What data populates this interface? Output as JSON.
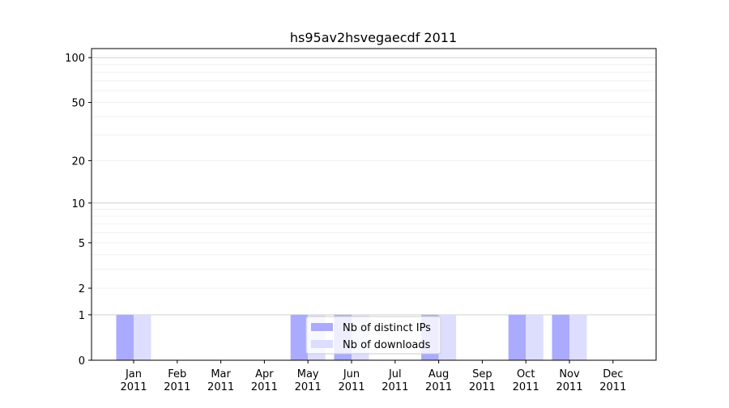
{
  "chart_data": {
    "type": "bar",
    "title": "hs95av2hsvegaecdf 2011",
    "xlabel": "",
    "ylabel": "",
    "yscale": "log(1+y)",
    "ylim": [
      0,
      115
    ],
    "yticks": [
      0,
      1,
      2,
      5,
      10,
      20,
      50,
      100
    ],
    "grid": true,
    "legend_placement": "bottom-center",
    "categories": [
      "Jan\n2011",
      "Feb\n2011",
      "Mar\n2011",
      "Apr\n2011",
      "May\n2011",
      "Jun\n2011",
      "Jul\n2011",
      "Aug\n2011",
      "Sep\n2011",
      "Oct\n2011",
      "Nov\n2011",
      "Dec\n2011"
    ],
    "series": [
      {
        "name": "Nb of distinct IPs",
        "color": "#aaaaff",
        "values": [
          1,
          0,
          0,
          0,
          1,
          1,
          0,
          1,
          0,
          1,
          1,
          0
        ]
      },
      {
        "name": "Nb of downloads",
        "color": "#ddddff",
        "values": [
          1,
          0,
          0,
          0,
          1,
          1,
          0,
          1,
          0,
          1,
          1,
          0
        ]
      }
    ]
  }
}
